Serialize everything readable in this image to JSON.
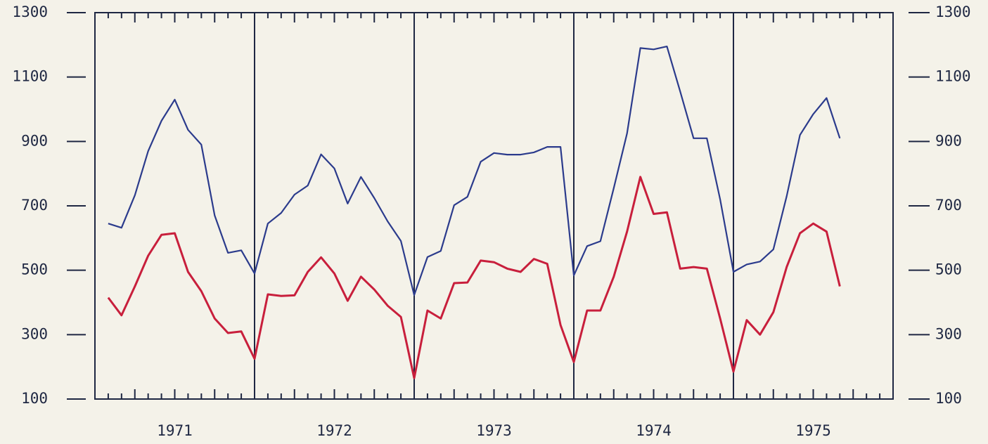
{
  "chart_data": {
    "type": "line",
    "categories": [
      "1971",
      "1972",
      "1973",
      "1974",
      "1975"
    ],
    "ylim": [
      100,
      1300
    ],
    "yticks": [
      100,
      300,
      500,
      700,
      900,
      1100,
      1300
    ],
    "y2lim": [
      100,
      1300
    ],
    "y2ticks": [
      100,
      300,
      500,
      700,
      900,
      1100,
      1300
    ],
    "series": [
      {
        "color": "#2b3b8c",
        "values": [
          [
            645,
            632,
            733,
            870,
            964,
            1030,
            936,
            890,
            670,
            554,
            562,
            490
          ],
          [
            645,
            678,
            735,
            763,
            860,
            816,
            707,
            790,
            724,
            652,
            591,
            423
          ],
          [
            541,
            560,
            702,
            728,
            837,
            864,
            859,
            859,
            866,
            883,
            883,
            484
          ],
          [
            575,
            590,
            755,
            925,
            1190,
            1186,
            1195,
            1055,
            910,
            910,
            720,
            495
          ],
          [
            518,
            527,
            565,
            730,
            920,
            985,
            1035,
            910,
            null,
            null,
            null,
            null
          ]
        ]
      },
      {
        "color": "#c81f3c",
        "values": [
          [
            415,
            360,
            450,
            545,
            610,
            615,
            495,
            435,
            350,
            305,
            310,
            225
          ],
          [
            425,
            420,
            422,
            495,
            540,
            490,
            405,
            480,
            440,
            390,
            355,
            165
          ],
          [
            375,
            350,
            460,
            462,
            530,
            525,
            505,
            495,
            535,
            520,
            330,
            215
          ],
          [
            375,
            375,
            480,
            620,
            790,
            675,
            680,
            505,
            510,
            505,
            350,
            185
          ],
          [
            345,
            300,
            370,
            510,
            615,
            645,
            620,
            450,
            null,
            null,
            null,
            null
          ]
        ]
      }
    ]
  }
}
